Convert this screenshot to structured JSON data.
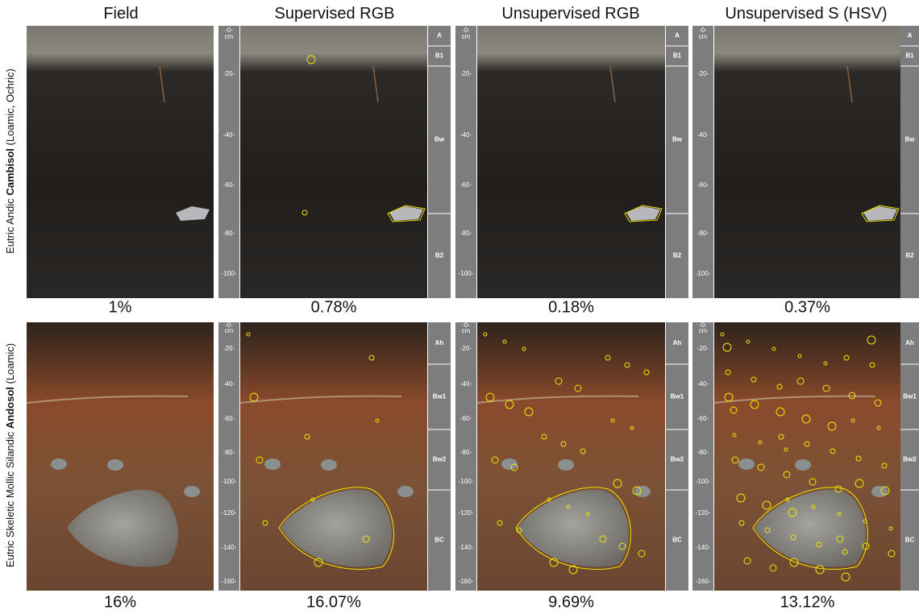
{
  "columns": [
    "Field",
    "Supervised RGB",
    "Unsupervised RGB",
    "Unsupervised S (HSV)"
  ],
  "rows": [
    {
      "label_prefix": "Eutric Andic ",
      "label_name": "Cambisol",
      "label_suffix": " (Loamic, Ochric)",
      "depth_labels": [
        "-0-",
        "cm",
        "-20-",
        "-40-",
        "-60-",
        "-80-",
        "-100-"
      ],
      "horizons": [
        "A",
        "B1",
        "Bw",
        "B2"
      ],
      "percentages": [
        "1%",
        "0.78%",
        "0.18%",
        "0.37%"
      ]
    },
    {
      "label_prefix": "Eutric Skeletic Mollic Silandic ",
      "label_name": "Andosol",
      "label_suffix": " (Loamic)",
      "depth_labels": [
        "-0-",
        "cm",
        "-20-",
        "-40-",
        "-60-",
        "-80-",
        "-100-",
        "-120-",
        "-140-",
        "-160-"
      ],
      "horizons": [
        "Ah",
        "Bw1",
        "Bw2",
        "BC"
      ],
      "percentages": [
        "16%",
        "16.07%",
        "9.69%",
        "13.12%"
      ]
    }
  ]
}
